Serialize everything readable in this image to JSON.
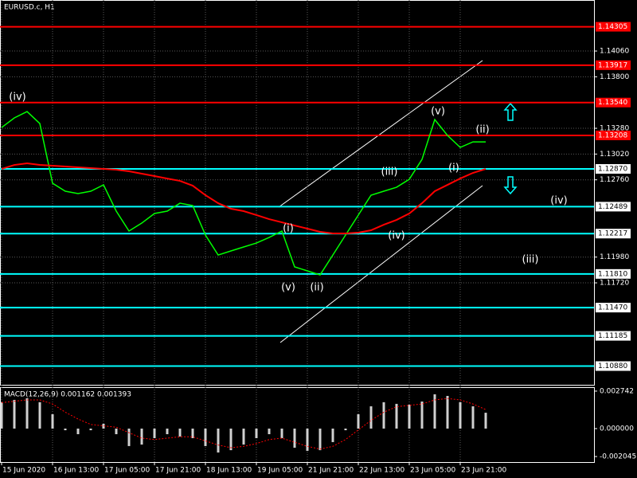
{
  "chart_data": [
    {
      "type": "line",
      "title": "EURUSD.c, H1",
      "categories": [
        "15 Jun 2020",
        null,
        null,
        null,
        "16 Jun 13:00",
        null,
        null,
        null,
        "17 Jun 05:00",
        null,
        null,
        null,
        "17 Jun 21:00",
        null,
        null,
        null,
        "18 Jun 13:00",
        null,
        null,
        null,
        "19 Jun 05:00",
        null,
        null,
        null,
        "21 Jun 21:00",
        null,
        null,
        null,
        "22 Jun 13:00",
        null,
        null,
        null,
        "23 Jun 05:00",
        null,
        null,
        null,
        "23 Jun 21:00",
        null,
        null
      ],
      "series": [
        {
          "color": "#00ff00",
          "values": [
            1.13288,
            1.13385,
            1.13449,
            1.13328,
            1.12725,
            1.12645,
            1.12621,
            1.12645,
            1.12709,
            1.12444,
            1.12243,
            1.12323,
            1.1242,
            1.12444,
            1.12524,
            1.125,
            1.12203,
            1.12001,
            1.12042,
            1.12082,
            1.12122,
            1.12178,
            1.12243,
            1.11881,
            1.11841,
            1.118,
            1.12001,
            1.12203,
            1.12404,
            1.12605,
            1.12645,
            1.12685,
            1.12765,
            1.12966,
            1.13368,
            1.13208,
            1.13087,
            1.13143,
            1.13143
          ]
        },
        {
          "color": "#ff0000",
          "values": [
            1.1287,
            1.1291,
            1.12926,
            1.1291,
            1.12902,
            1.12894,
            1.12886,
            1.12878,
            1.1287,
            1.12862,
            1.12846,
            1.12822,
            1.12798,
            1.12773,
            1.12749,
            1.12701,
            1.12605,
            1.12524,
            1.12468,
            1.12444,
            1.12404,
            1.12363,
            1.12331,
            1.12299,
            1.12267,
            1.12235,
            1.12219,
            1.12219,
            1.12227,
            1.12251,
            1.12307,
            1.12355,
            1.1242,
            1.12524,
            1.12645,
            1.12709,
            1.12773,
            1.1283,
            1.1287
          ]
        }
      ],
      "ylim": [
        1.10691,
        1.14575
      ],
      "yticks": [
        {
          "value": 1.1406,
          "label": "1.14060"
        },
        {
          "value": 1.138,
          "label": "1.13800"
        },
        {
          "value": 1.1328,
          "label": "1.13280"
        },
        {
          "value": 1.1302,
          "label": "1.13020"
        },
        {
          "value": 1.1276,
          "label": "1.12760"
        },
        {
          "value": 1.1198,
          "label": "1.11980"
        },
        {
          "value": 1.1172,
          "label": "1.11720"
        }
      ],
      "grid": true,
      "levels": [
        {
          "value": 1.14305,
          "label": "1.14305",
          "color": "#ff0000"
        },
        {
          "value": 1.13917,
          "label": "1.13917",
          "color": "#ff0000"
        },
        {
          "value": 1.1354,
          "label": "1.13540",
          "color": "#ff0000"
        },
        {
          "value": 1.13208,
          "label": "1.13208",
          "color": "#ff0000"
        },
        {
          "value": 1.1287,
          "label": "1.12870",
          "color": "#00ffff"
        },
        {
          "value": 1.12489,
          "label": "1.12489",
          "color": "#00ffff"
        },
        {
          "value": 1.12217,
          "label": "1.12217",
          "color": "#00ffff"
        },
        {
          "value": 1.1181,
          "label": "1.11810",
          "color": "#00ffff"
        },
        {
          "value": 1.1147,
          "label": "1.11470",
          "color": "#00ffff"
        },
        {
          "value": 1.11185,
          "label": "1.11185",
          "color": "#00ffff"
        },
        {
          "value": 1.1088,
          "label": "1.10880",
          "color": "#00ffff"
        }
      ],
      "annotations": [
        "(iv)",
        "(v)",
        "(ii)",
        "(i)",
        "(iii)",
        "(iv)",
        "(i)",
        "(v)",
        "(ii)",
        "(iv)",
        "(iii)"
      ]
    },
    {
      "type": "bar",
      "title": "MACD(12,26,9) 0.001162 0.001393",
      "series": [
        {
          "kind": "bar",
          "color": "#d0d0d0",
          "values": [
            0.00193,
            0.0021,
            0.00222,
            0.00193,
            0.00105,
            -0.00012,
            -0.00041,
            -0.00012,
            0.00035,
            -0.00041,
            -0.00128,
            -0.00117,
            -0.0007,
            -0.00041,
            -0.00058,
            -0.0007,
            -0.00128,
            -0.00175,
            -0.00158,
            -0.00117,
            -0.0007,
            -0.00041,
            -0.0007,
            -0.0014,
            -0.00163,
            -0.00158,
            -0.00099,
            -0.00012,
            0.00105,
            0.00163,
            0.00193,
            0.00181,
            0.00175,
            0.00198,
            0.00251,
            0.00239,
            0.00193,
            0.00163,
            0.00116
          ]
        },
        {
          "kind": "line",
          "color": "#ff0000",
          "values": [
            0.0019,
            0.002,
            0.0021,
            0.0021,
            0.0018,
            0.0012,
            0.0007,
            0.0003,
            0.0002,
            0.0001,
            -0.0003,
            -0.0007,
            -0.0008,
            -0.0007,
            -0.0006,
            -0.0006,
            -0.0009,
            -0.0012,
            -0.0014,
            -0.0013,
            -0.0011,
            -0.0008,
            -0.0007,
            -0.001,
            -0.0013,
            -0.0015,
            -0.0013,
            -0.0008,
            -0.0001,
            0.0006,
            0.0012,
            0.0016,
            0.0017,
            0.0018,
            0.0021,
            0.0022,
            0.0021,
            0.0018,
            0.001393
          ]
        }
      ],
      "ylim": [
        -0.00245,
        0.00303
      ],
      "yticks": [
        0.002742,
        {
          "value": 0,
          "label": "0.000000"
        },
        -0.002045
      ]
    }
  ]
}
